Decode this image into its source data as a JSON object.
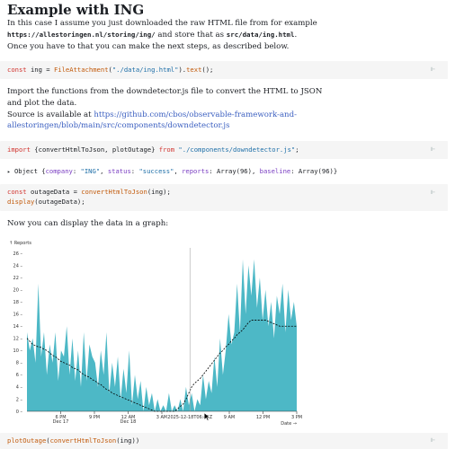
{
  "heading": "Example with ING",
  "intro": {
    "line1": "In this case I assume you just downloaded the raw HTML file from for example",
    "url": "https://allestoringen.nl/storing/ing/",
    "and_store": " and store that as ",
    "path": "src/data/ing.html",
    "period": ".",
    "line3": "Once you have to that you can make the next steps, as described below."
  },
  "cell1": {
    "kw": "const",
    "var": " ing = ",
    "fn": "FileAttachment",
    "open": "(",
    "str": "\"./data/ing.html\"",
    "close": ").",
    "method": "text",
    "end": "();"
  },
  "import_text": {
    "line1": "Import the functions from the downdetector.js file to convert the HTML to JSON",
    "line2": "and plot the data.",
    "source_prefix": "Source is available at ",
    "link_line1": "https://github.com/cbos/observable-framework-and-",
    "link_line2": "allestoringen/blob/main/src/components/downdetector.js"
  },
  "cell2": {
    "kw": "import",
    "names": " {convertHtmlToJson, plotOutage} ",
    "from": "from",
    "str": "\"./components/downdetector.js\"",
    "end": ";"
  },
  "object_output": {
    "arrow": "▸",
    "prefix": "Object {",
    "k1": "company",
    "v1": "\"ING\"",
    "k2": "status",
    "v2": "\"success\"",
    "k3": "reports",
    "v3": "Array(96)",
    "k4": "baseline",
    "v4": "Array(96)",
    "suffix": "}"
  },
  "cell3": {
    "kw": "const",
    "var": " outageData = ",
    "fn": "convertHtmlToJson",
    "arg": "(ing);",
    "line2_fn": "display",
    "line2_arg": "(outageData);"
  },
  "graph_intro": "Now you can display the data in a graph:",
  "cell4": {
    "fn": "plotOutage",
    "open": "(",
    "inner_fn": "convertHtmlToJson",
    "inner_arg": "(ing)",
    "close": ")"
  },
  "icons": {
    "pin": "pin-icon",
    "expand": "triangle-right-icon"
  },
  "chart_data": {
    "type": "area",
    "ylabel": "↑ Reports",
    "xlabel": "Date →",
    "ylim": [
      0,
      26
    ],
    "y_ticks": [
      0,
      2,
      4,
      6,
      8,
      10,
      12,
      14,
      16,
      18,
      20,
      22,
      24,
      26
    ],
    "x_ticks": [
      {
        "t": 3,
        "label": "6 PM",
        "sub": "Dec 17"
      },
      {
        "t": 6,
        "label": "9 PM",
        "sub": ""
      },
      {
        "t": 9,
        "label": "12 AM",
        "sub": "Dec 18"
      },
      {
        "t": 12,
        "label": "3 AM",
        "sub": ""
      },
      {
        "t": 18,
        "label": "9 AM",
        "sub": ""
      },
      {
        "t": 21,
        "label": "12 PM",
        "sub": ""
      },
      {
        "t": 24,
        "label": "3 PM",
        "sub": ""
      }
    ],
    "x_range_hours": [
      0,
      24
    ],
    "cursor": {
      "t": 14.5,
      "label": "2025-12-18T06:45Z"
    },
    "colors": {
      "area": "#4db8c6",
      "baseline": "#000000",
      "cursor": "#aaaaaa"
    },
    "reports": [
      13,
      10,
      12,
      8,
      21,
      9,
      13,
      6,
      11,
      8,
      13,
      5,
      10,
      9,
      14,
      6,
      12,
      5,
      10,
      4,
      13,
      5,
      11,
      9,
      8,
      4,
      10,
      6,
      13,
      3,
      8,
      4,
      9,
      2,
      7,
      3,
      10,
      1,
      6,
      2,
      5,
      0,
      4,
      1,
      3,
      0,
      2,
      0,
      1,
      0,
      3,
      0,
      1,
      0,
      2,
      0,
      4,
      1,
      3,
      0,
      2,
      1,
      6,
      2,
      5,
      3,
      9,
      4,
      12,
      6,
      10,
      16,
      11,
      13,
      21,
      13,
      25,
      16,
      24,
      19,
      25,
      17,
      22,
      15,
      20,
      14,
      18,
      12,
      19,
      16,
      21,
      13,
      20,
      15,
      18,
      14
    ],
    "baseline": [
      12,
      11.5,
      11,
      10.8,
      10.6,
      10.5,
      10.2,
      10,
      9.6,
      9.2,
      9,
      8.6,
      8.2,
      8,
      7.8,
      7.6,
      7.2,
      7,
      6.8,
      6.4,
      6,
      5.8,
      5.6,
      5.2,
      5,
      4.6,
      4.4,
      4,
      3.6,
      3.4,
      3,
      2.8,
      2.6,
      2.4,
      2.2,
      2,
      1.8,
      1.6,
      1.4,
      1.2,
      1,
      0.8,
      0.6,
      0.4,
      0.2,
      0,
      0,
      0,
      0,
      0,
      0,
      0,
      0,
      0.4,
      0.8,
      1.2,
      2,
      3,
      4,
      4.6,
      5,
      5.4,
      6,
      6.6,
      7.2,
      7.8,
      8.4,
      9,
      9.6,
      10,
      10.6,
      11,
      11.6,
      12,
      12.6,
      13,
      13.4,
      14,
      14.6,
      15,
      15,
      15,
      15,
      15,
      15,
      14.8,
      14.6,
      14.4,
      14.2,
      14,
      14,
      14,
      14,
      14,
      14,
      14
    ]
  }
}
